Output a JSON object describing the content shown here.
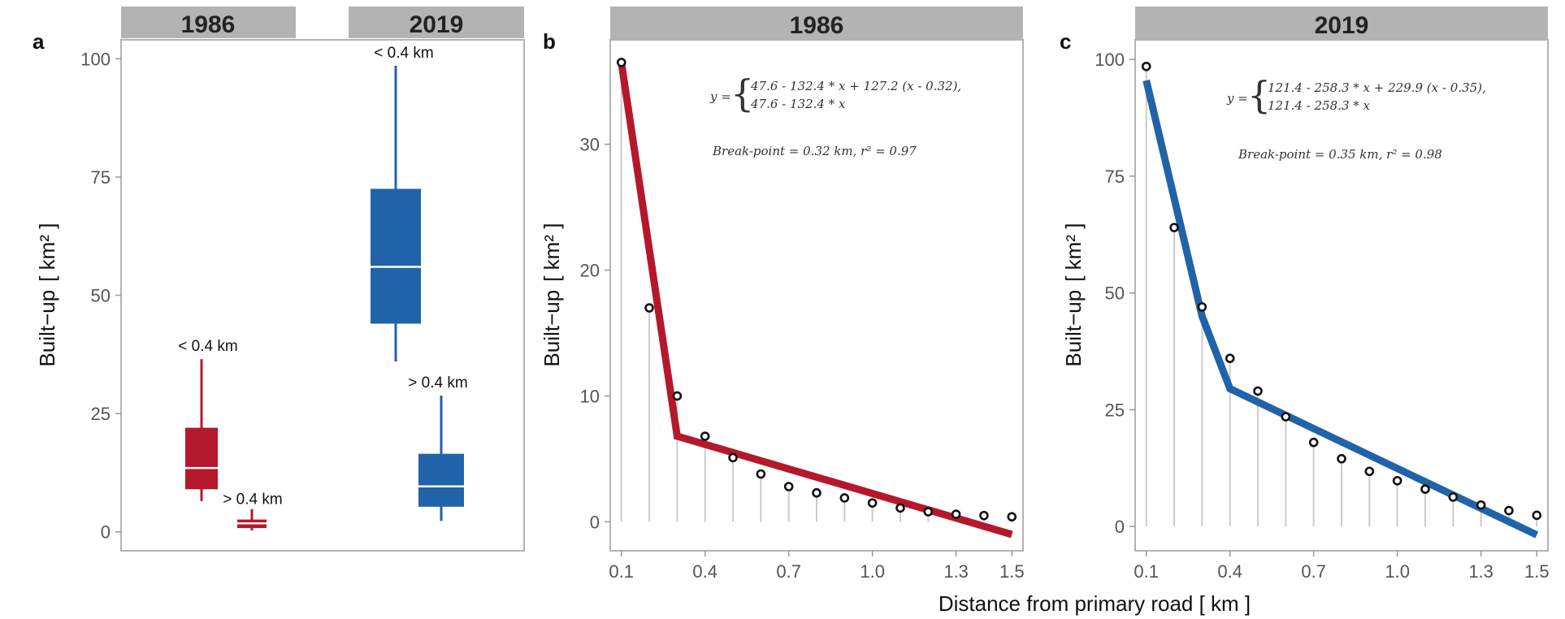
{
  "xaxis_title": "Distance from primary road [ km ]",
  "colors": {
    "red": "#b5182b",
    "blue": "#2163a8",
    "strip": "#b3b3b3",
    "frame": "#b3b3b3",
    "stem": "#cccccc"
  },
  "chart_data": [
    {
      "panel": "a",
      "type": "box",
      "strips": [
        "1986",
        "2019"
      ],
      "ylabel": "Built−up",
      "yunit": "[ km² ]",
      "ylim": [
        -4,
        104
      ],
      "yticks": [
        0,
        25,
        50,
        75,
        100
      ],
      "boxes": [
        {
          "group": "1986",
          "label": "< 0.4 km",
          "color": "red",
          "min": 6.5,
          "q1": 9,
          "median": 13.5,
          "q3": 22,
          "max": 36.5
        },
        {
          "group": "1986",
          "label": "> 0.4 km",
          "color": "red",
          "min": 0.3,
          "q1": 0.8,
          "median": 1.8,
          "q3": 2.6,
          "max": 4.8
        },
        {
          "group": "2019",
          "label": "< 0.4 km",
          "color": "blue",
          "min": 36,
          "q1": 44,
          "median": 56,
          "q3": 72.5,
          "max": 98.5
        },
        {
          "group": "2019",
          "label": "> 0.4 km",
          "color": "blue",
          "min": 2.3,
          "q1": 5.3,
          "median": 9.6,
          "q3": 16.5,
          "max": 28.8
        }
      ]
    },
    {
      "panel": "b",
      "type": "scatter",
      "strip": "1986",
      "color": "red",
      "ylabel": "Built−up",
      "yunit": "[ km² ]",
      "xlim": [
        0.06,
        1.54
      ],
      "ylim": [
        -2.3,
        38.3
      ],
      "xticks": [
        0.1,
        0.4,
        0.7,
        1.0,
        1.3,
        1.5
      ],
      "xtick_labels": [
        "0.1",
        "0.4",
        "0.7",
        "1.0",
        "1.3",
        "1.5"
      ],
      "yticks": [
        0,
        10,
        20,
        30
      ],
      "x": [
        0.1,
        0.2,
        0.3,
        0.4,
        0.5,
        0.6,
        0.7,
        0.8,
        0.9,
        1.0,
        1.1,
        1.2,
        1.3,
        1.4,
        1.5
      ],
      "y": [
        36.5,
        17,
        10,
        6.8,
        5.1,
        3.8,
        2.8,
        2.3,
        1.9,
        1.5,
        1.1,
        0.8,
        0.6,
        0.5,
        0.4
      ],
      "fit": [
        [
          0.1,
          36.5
        ],
        [
          0.3,
          6.8
        ],
        [
          1.5,
          -1.0
        ]
      ],
      "equation_prefix": "y =",
      "equation_lines": [
        "47.6 - 132.4 * x + 127.2 (x - 0.32),",
        "47.6 - 132.4 * x"
      ],
      "annotation": "Break-point = 0.32 km, r² = 0.97"
    },
    {
      "panel": "c",
      "type": "scatter",
      "strip": "2019",
      "color": "blue",
      "ylabel": "Built−up",
      "yunit": "[ km² ]",
      "xlim": [
        0.06,
        1.54
      ],
      "ylim": [
        -5.2,
        104.2
      ],
      "xticks": [
        0.1,
        0.4,
        0.7,
        1.0,
        1.3,
        1.5
      ],
      "xtick_labels": [
        "0.1",
        "0.4",
        "0.7",
        "1.0",
        "1.3",
        "1.5"
      ],
      "yticks": [
        0,
        25,
        50,
        75,
        100
      ],
      "x": [
        0.1,
        0.2,
        0.3,
        0.4,
        0.5,
        0.6,
        0.7,
        0.8,
        0.9,
        1.0,
        1.1,
        1.2,
        1.3,
        1.4,
        1.5
      ],
      "y": [
        98.5,
        64,
        47,
        36,
        29,
        23.5,
        18,
        14.5,
        11.8,
        9.8,
        8,
        6.3,
        4.6,
        3.4,
        2.4
      ],
      "fit": [
        [
          0.1,
          95.5
        ],
        [
          0.3,
          45
        ],
        [
          0.4,
          29.5
        ],
        [
          1.5,
          -1.8
        ]
      ],
      "equation_prefix": "y =",
      "equation_lines": [
        "121.4 - 258.3 * x + 229.9  (x - 0.35),",
        "121.4 - 258.3 * x"
      ],
      "annotation": "Break-point = 0.35 km, r² = 0.98"
    }
  ]
}
